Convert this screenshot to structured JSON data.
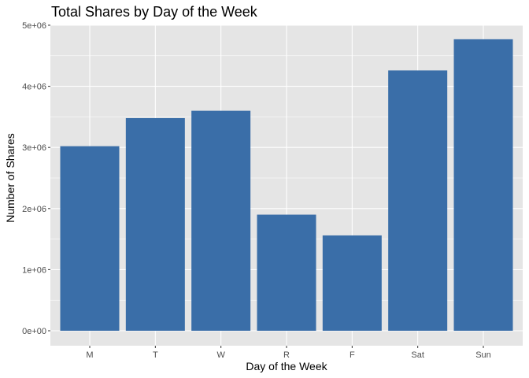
{
  "chart_data": {
    "type": "bar",
    "title": "Total Shares by Day of the Week",
    "xlabel": "Day of the Week",
    "ylabel": "Number of Shares",
    "categories": [
      "M",
      "T",
      "W",
      "R",
      "F",
      "Sat",
      "Sun"
    ],
    "values": [
      3020000,
      3480000,
      3600000,
      1900000,
      1560000,
      4260000,
      4770000
    ],
    "ylim": [
      0,
      5000000
    ],
    "yticks": [
      0,
      1000000,
      2000000,
      3000000,
      4000000,
      5000000
    ],
    "ytick_labels": [
      "0e+00",
      "1e+06",
      "2e+06",
      "3e+06",
      "4e+06",
      "5e+06"
    ],
    "grid": true,
    "panel_background": "#e5e5e5",
    "grid_color": "#ffffff",
    "bar_color": "#3a6ea8"
  }
}
